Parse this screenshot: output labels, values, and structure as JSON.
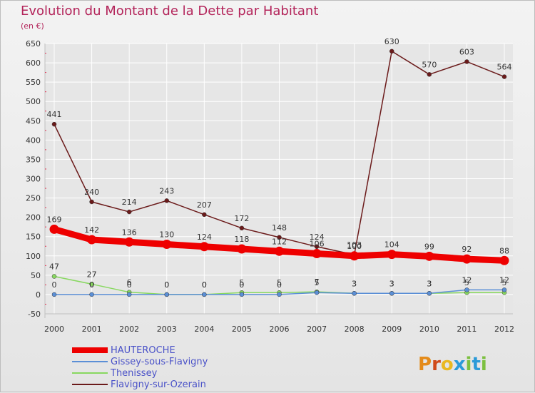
{
  "title": "Evolution du Montant de la Dette par Habitant",
  "unit": "(en €)",
  "logo": "Proxiti",
  "colors": {
    "title": "#b3245a",
    "grid": "#ffffff",
    "legend_text": "#4a52c8"
  },
  "chart_data": {
    "type": "line",
    "categories": [
      "2000",
      "2001",
      "2002",
      "2003",
      "2004",
      "2005",
      "2006",
      "2007",
      "2008",
      "2009",
      "2010",
      "2011",
      "2012"
    ],
    "ylim": [
      -50,
      650
    ],
    "yticks": [
      -50,
      0,
      50,
      100,
      150,
      200,
      250,
      300,
      350,
      400,
      450,
      500,
      550,
      600,
      650
    ],
    "grid": true,
    "legend_position": "bottom-left",
    "series": [
      {
        "name": "HAUTEROCHE",
        "color": "#ee0000",
        "values": [
          169,
          142,
          136,
          130,
          124,
          118,
          112,
          106,
          100,
          104,
          99,
          92,
          88
        ]
      },
      {
        "name": "Gissey-sous-Flavigny",
        "color": "#5b8fd6",
        "values": [
          0,
          0,
          0,
          0,
          0,
          0,
          0,
          5,
          3,
          3,
          3,
          12,
          12
        ]
      },
      {
        "name": "Thenissey",
        "color": "#88d860",
        "values": [
          47,
          27,
          6,
          0,
          0,
          5,
          5,
          7,
          3,
          3,
          3,
          5,
          5
        ]
      },
      {
        "name": "Flavigny-sur-Ozerain",
        "color": "#6b1a1a",
        "values": [
          441,
          240,
          214,
          243,
          207,
          172,
          148,
          124,
          103,
          630,
          570,
          603,
          564
        ]
      }
    ]
  }
}
